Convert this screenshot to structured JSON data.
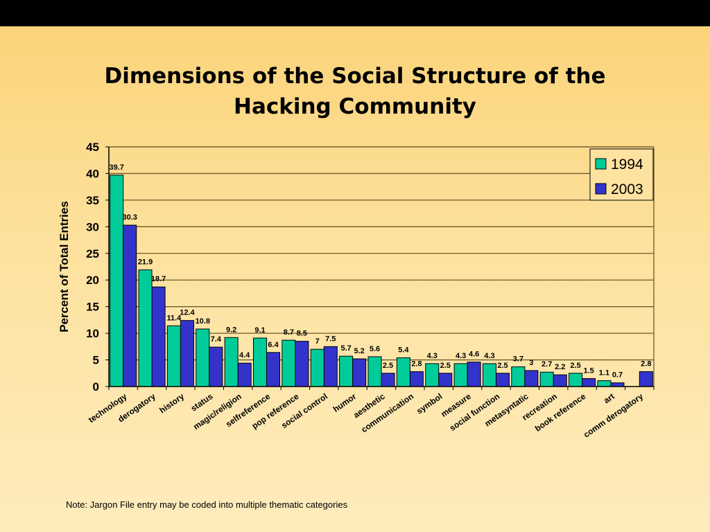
{
  "chart_data": {
    "type": "bar",
    "title": "Dimensions of the Social Structure of the Hacking Community",
    "title_lines": [
      "Dimensions of the Social Structure of the",
      "Hacking Community"
    ],
    "xlabel": "",
    "ylabel": "Percent of Total Entries",
    "ylim": [
      0,
      45
    ],
    "yticks": [
      0,
      5,
      10,
      15,
      20,
      25,
      30,
      35,
      40,
      45
    ],
    "grid": true,
    "legend_position": "top-right",
    "categories": [
      "technology",
      "derogatory",
      "history",
      "status",
      "magic/religion",
      "selfreference",
      "pop reference",
      "social control",
      "humor",
      "aesthetic",
      "communication",
      "symbol",
      "measure",
      "social function",
      "metasyntatic",
      "recreation",
      "book reference",
      "art",
      "comm derogatory"
    ],
    "series": [
      {
        "name": "1994",
        "color": "#00cc99",
        "values": [
          39.7,
          21.9,
          11.4,
          10.8,
          9.2,
          9.1,
          8.7,
          7,
          5.7,
          5.6,
          5.4,
          4.3,
          4.3,
          4.3,
          3.7,
          2.7,
          2.5,
          1.1,
          null
        ]
      },
      {
        "name": "2003",
        "color": "#3333cc",
        "values": [
          30.3,
          18.7,
          12.4,
          7.4,
          4.4,
          6.4,
          8.5,
          7.5,
          5.2,
          2.5,
          2.8,
          2.5,
          4.6,
          2.5,
          3,
          2.2,
          1.5,
          0.7,
          2.8
        ]
      }
    ]
  },
  "note": "Note:  Jargon File entry may be coded into multiple thematic categories"
}
